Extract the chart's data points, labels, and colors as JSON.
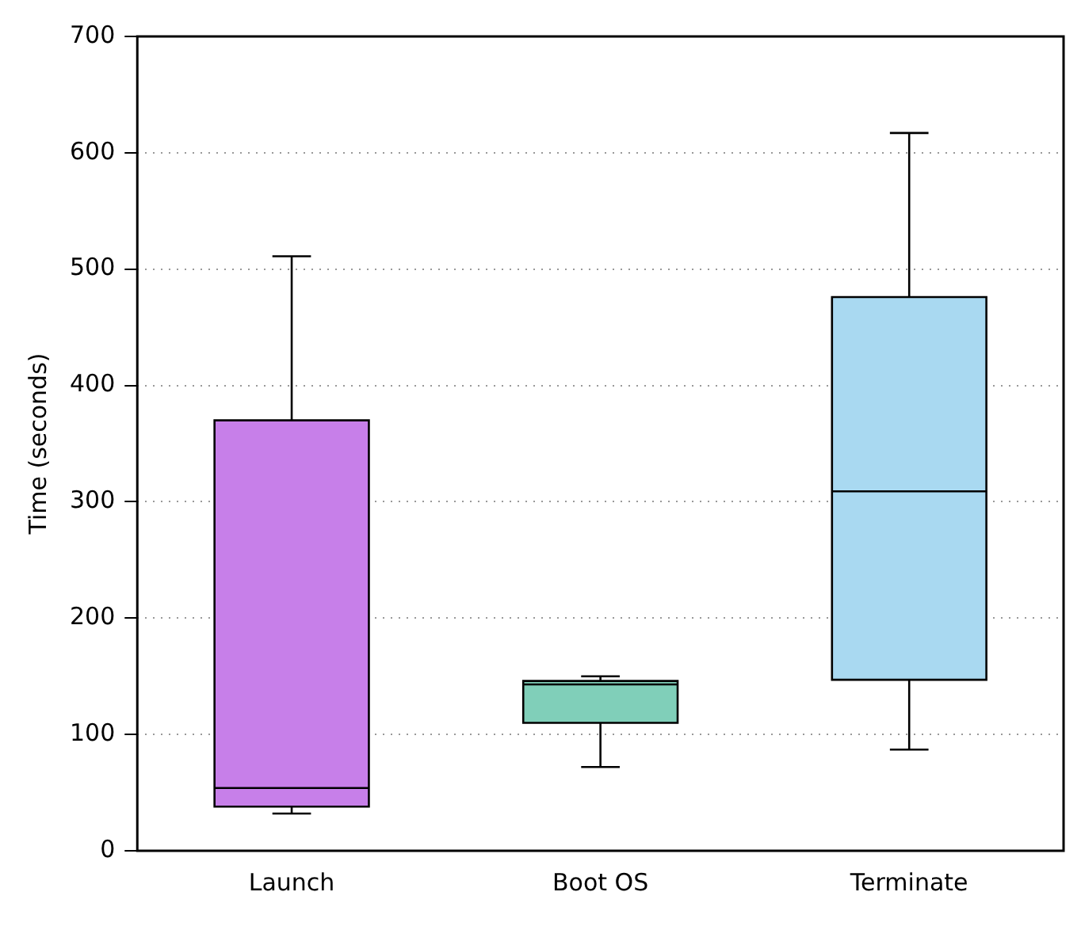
{
  "chart_data": {
    "type": "box",
    "ylabel": "Time (seconds)",
    "categories": [
      "Launch",
      "Boot OS",
      "Terminate"
    ],
    "colors": [
      "#c77fe9",
      "#80cfb9",
      "#a9d9f1"
    ],
    "boxes": [
      {
        "low": 32,
        "q1": 38,
        "median": 54,
        "q3": 370,
        "high": 511
      },
      {
        "low": 72,
        "q1": 110,
        "median": 143,
        "q3": 146,
        "high": 150
      },
      {
        "low": 87,
        "q1": 147,
        "median": 309,
        "q3": 476,
        "high": 617
      }
    ],
    "ylim": [
      0,
      700
    ],
    "yticks": [
      0,
      100,
      200,
      300,
      400,
      500,
      600,
      700
    ],
    "grid": "y",
    "legend": false
  }
}
